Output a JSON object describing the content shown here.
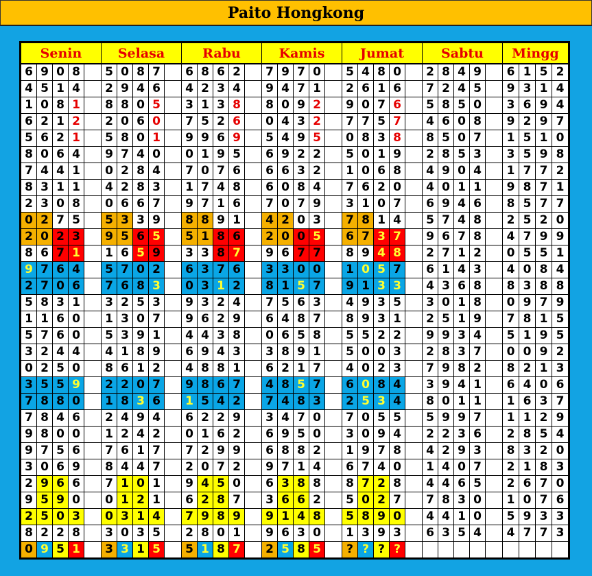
{
  "header": {
    "title": "Paito Hongkong"
  },
  "days": [
    "Senin",
    "Selasa",
    "Rabu",
    "Kamis",
    "Jumat",
    "Sabtu",
    "Mingg"
  ],
  "colors": {
    "page_bg": "#12a3e3",
    "title_bg": "#ffc000",
    "header_bg": "#ffff00",
    "header_text": "#e60000",
    "orange": "#f5b000",
    "red": "#ff0000",
    "blue": "#0aa6e6",
    "yellow": "#ffff00",
    "red_text": "#e60000",
    "yellow_text": "#ffff30"
  },
  "rows": [
    [
      "6908",
      "5087",
      "6862",
      "7970",
      "5480",
      "2849",
      "6152"
    ],
    [
      "4514",
      "2946",
      "4234",
      "9471",
      "2616",
      "7245",
      "9314"
    ],
    [
      "1081",
      "8805",
      "3138",
      "8092",
      "9076",
      "5850",
      "3694"
    ],
    [
      "6212",
      "2060",
      "7526",
      "0432",
      "7757",
      "4608",
      "9297"
    ],
    [
      "5621",
      "5801",
      "9969",
      "5495",
      "0838",
      "8507",
      "1510"
    ],
    [
      "8064",
      "9740",
      "0195",
      "6922",
      "5019",
      "2853",
      "3598"
    ],
    [
      "7441",
      "0284",
      "7076",
      "6632",
      "1068",
      "4904",
      "1772"
    ],
    [
      "8311",
      "4283",
      "1748",
      "6084",
      "7620",
      "4011",
      "9871"
    ],
    [
      "2308",
      "0667",
      "9716",
      "7079",
      "3107",
      "6946",
      "8577"
    ],
    [
      "0275",
      "5339",
      "8891",
      "4203",
      "7814",
      "5748",
      "2520"
    ],
    [
      "2023",
      "9565",
      "5186",
      "2005",
      "6737",
      "9678",
      "4799"
    ],
    [
      "8671",
      "1659",
      "3387",
      "9677",
      "8948",
      "2712",
      "0551"
    ],
    [
      "9764",
      "5702",
      "6376",
      "3300",
      "1057",
      "6143",
      "4084"
    ],
    [
      "2706",
      "7683",
      "0312",
      "8157",
      "9133",
      "4368",
      "8388"
    ],
    [
      "5831",
      "3253",
      "9324",
      "7563",
      "4935",
      "3018",
      "0979"
    ],
    [
      "1160",
      "1307",
      "9629",
      "6487",
      "8931",
      "2519",
      "7815"
    ],
    [
      "5760",
      "5391",
      "4438",
      "0658",
      "5522",
      "9934",
      "5195"
    ],
    [
      "3244",
      "4189",
      "6943",
      "3891",
      "5003",
      "2837",
      "0092"
    ],
    [
      "0250",
      "8612",
      "4881",
      "6217",
      "4023",
      "7982",
      "8213"
    ],
    [
      "3559",
      "2207",
      "9867",
      "4857",
      "6084",
      "3941",
      "6406"
    ],
    [
      "7880",
      "1836",
      "1542",
      "7483",
      "2534",
      "8011",
      "1637"
    ],
    [
      "7846",
      "2494",
      "6229",
      "3470",
      "7055",
      "5997",
      "1129"
    ],
    [
      "9800",
      "1242",
      "0162",
      "6950",
      "3094",
      "2236",
      "2854"
    ],
    [
      "9756",
      "7617",
      "7299",
      "6882",
      "1978",
      "4293",
      "8320"
    ],
    [
      "3069",
      "8447",
      "2072",
      "9714",
      "6740",
      "1407",
      "2183"
    ],
    [
      "2966",
      "7101",
      "9450",
      "6388",
      "8728",
      "4465",
      "2670"
    ],
    [
      "9590",
      "0121",
      "6287",
      "3662",
      "5027",
      "7830",
      "1076"
    ],
    [
      "2503",
      "0314",
      "7989",
      "9148",
      "5890",
      "4410",
      "5933"
    ],
    [
      "8228",
      "3035",
      "2801",
      "9630",
      "1393",
      "6354",
      "4773"
    ],
    [
      "0951",
      "3315",
      "5187",
      "2585",
      "????",
      "",
      ""
    ]
  ],
  "cell_styles": {
    "2": [
      "wwwr",
      "wwwr",
      "wwwr",
      "wwwr",
      "wwwr"
    ],
    "3": [
      "wwwr",
      "wwwr",
      "wwwr",
      "wwwr",
      "wwwr"
    ],
    "4": [
      "wwwr",
      "wwwr",
      "wwwr",
      "wwwr",
      "wwwr"
    ],
    "9": [
      "OOww",
      "OOww",
      "OOww",
      "OOww",
      "OOww"
    ],
    "10": [
      "OORR",
      "OORY",
      "OORR",
      "OORY",
      "OOYY"
    ],
    "11": [
      "wwRY",
      "wwYR",
      "wwRY",
      "wwRR",
      "wwYY"
    ],
    "12": [
      "bBBB",
      "BBBB",
      "BBBB",
      "BBBB",
      "BbbB"
    ],
    "13": [
      "BBBB",
      "BBBb",
      "BBbB",
      "BBbB",
      "BBbb"
    ],
    "19": [
      "BBBb",
      "BBBB",
      "BBBB",
      "BBbB",
      "BbBB"
    ],
    "20": [
      "BBBB",
      "BBbB",
      "bBBB",
      "BBBB",
      "BbbB"
    ],
    "25": [
      "wyyw",
      "wyyw",
      "wyyw",
      "wyyw",
      "wyyw"
    ],
    "26": [
      "wyyw",
      "wyyw",
      "wyyw",
      "wyyw",
      "wyyw"
    ],
    "27": [
      "yyyy",
      "yyyy",
      "yyyy",
      "yyyy",
      "yyyy"
    ],
    "29": [
      "ObyY",
      "ObyY",
      "ObyY",
      "ObyY",
      "ObyY"
    ]
  }
}
